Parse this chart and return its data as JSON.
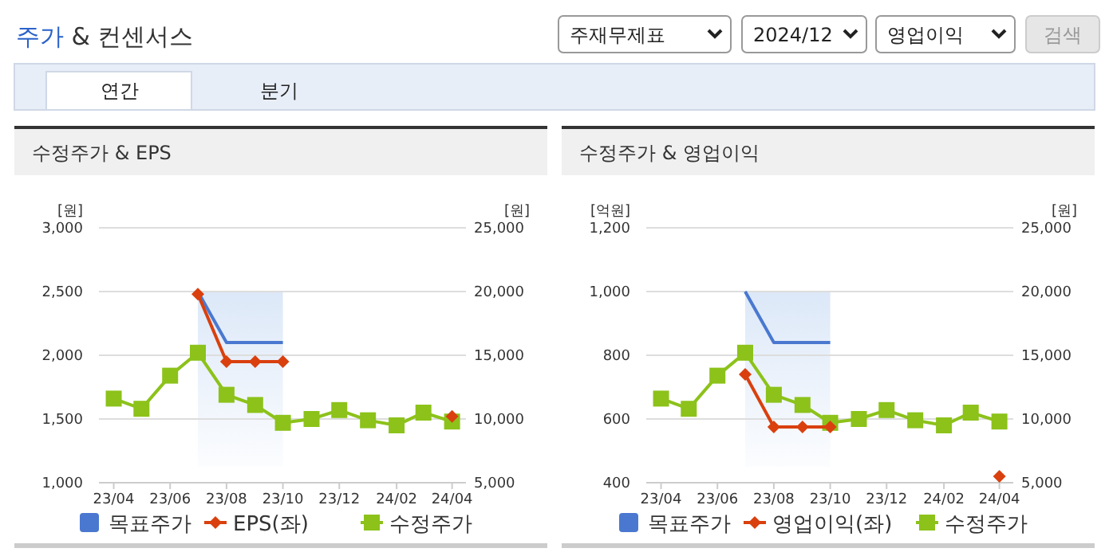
{
  "chart_data": [
    {
      "type": "other",
      "title": "주가 & 컨센서스",
      "annotations": [
        "주재무제표",
        "2024/12",
        "영업이익",
        "검색",
        "연간",
        "분기"
      ]
    },
    {
      "type": "line",
      "title": "수정주가 & EPS",
      "ylabel": "[원]",
      "y2label": "[원]",
      "x": [
        "2023-04",
        "2023-05",
        "2023-06",
        "2023-07",
        "2023-08",
        "2023-09",
        "2023-10",
        "2023-11",
        "2023-12",
        "2024-01",
        "2024-02",
        "2024-03",
        "2024-04"
      ],
      "xlim": [
        "2023-03-16",
        "2024-04-16"
      ],
      "xticks": [
        {
          "value": "2023-04",
          "label": "23/04"
        },
        {
          "value": "2023-06",
          "label": "23/06"
        },
        {
          "value": "2023-08",
          "label": "23/08"
        },
        {
          "value": "2023-10",
          "label": "23/10"
        },
        {
          "value": "2023-12",
          "label": "23/12"
        },
        {
          "value": "2024-02",
          "label": "24/02"
        },
        {
          "value": "2024-04",
          "label": "24/04"
        }
      ],
      "ylim": [
        1000,
        3000
      ],
      "yticks": [
        {
          "value": 1000,
          "label": "1,000"
        },
        {
          "value": 1500,
          "label": "1,500"
        },
        {
          "value": 2000,
          "label": "2,000"
        },
        {
          "value": 2500,
          "label": "2,500"
        },
        {
          "value": 3000,
          "label": "3,000"
        }
      ],
      "y2lim": [
        5000,
        25000
      ],
      "y2ticks": [
        {
          "value": 5000,
          "label": "5,000"
        },
        {
          "value": 10000,
          "label": "10,000"
        },
        {
          "value": 15000,
          "label": "15,000"
        },
        {
          "value": 20000,
          "label": "20,000"
        },
        {
          "value": 25000,
          "label": "25,000"
        }
      ],
      "grid": "y",
      "legend": "bottom",
      "bands": [
        {
          "axis": "x",
          "from": "2023-07",
          "to": "2023-10",
          "color": "#dce8f8"
        }
      ],
      "series": [
        {
          "name": "목표주가",
          "color": "#4a78d0",
          "axis": "y2",
          "marker": "none",
          "values": [
            null,
            null,
            null,
            20000,
            16000,
            16000,
            16000,
            null,
            null,
            null,
            null,
            null,
            null
          ]
        },
        {
          "name": "EPS(좌)",
          "color": "#d9400e",
          "marker": "diamond",
          "values": [
            null,
            null,
            null,
            2480,
            1950,
            1950,
            1950,
            null,
            null,
            null,
            null,
            null,
            1520
          ]
        },
        {
          "name": "수정주가",
          "color": "#8cc21a",
          "axis": "y2",
          "marker": "square",
          "values": [
            11600,
            10800,
            13400,
            15200,
            11900,
            11100,
            9700,
            10000,
            10700,
            9900,
            9500,
            10500,
            9800
          ]
        }
      ]
    },
    {
      "type": "line",
      "title": "수정주가 & 영업이익",
      "ylabel": "[억원]",
      "y2label": "[원]",
      "x": [
        "2023-04",
        "2023-05",
        "2023-06",
        "2023-07",
        "2023-08",
        "2023-09",
        "2023-10",
        "2023-11",
        "2023-12",
        "2024-01",
        "2024-02",
        "2024-03",
        "2024-04"
      ],
      "xlim": [
        "2023-03-16",
        "2024-04-16"
      ],
      "xticks": [
        {
          "value": "2023-04",
          "label": "23/04"
        },
        {
          "value": "2023-06",
          "label": "23/06"
        },
        {
          "value": "2023-08",
          "label": "23/08"
        },
        {
          "value": "2023-10",
          "label": "23/10"
        },
        {
          "value": "2023-12",
          "label": "23/12"
        },
        {
          "value": "2024-02",
          "label": "24/02"
        },
        {
          "value": "2024-04",
          "label": "24/04"
        }
      ],
      "ylim": [
        400,
        1200
      ],
      "yticks": [
        400,
        600,
        800,
        {
          "value": 1000,
          "label": "1,000"
        },
        {
          "value": 1200,
          "label": "1,200"
        }
      ],
      "y2lim": [
        5000,
        25000
      ],
      "y2ticks": [
        {
          "value": 5000,
          "label": "5,000"
        },
        {
          "value": 10000,
          "label": "10,000"
        },
        {
          "value": 15000,
          "label": "15,000"
        },
        {
          "value": 20000,
          "label": "20,000"
        },
        {
          "value": 25000,
          "label": "25,000"
        }
      ],
      "grid": "y",
      "legend": "bottom",
      "bands": [
        {
          "axis": "x",
          "from": "2023-07",
          "to": "2023-10",
          "color": "#dce8f8"
        }
      ],
      "series": [
        {
          "name": "목표주가",
          "color": "#4a78d0",
          "axis": "y2",
          "marker": "none",
          "values": [
            null,
            null,
            null,
            20000,
            16000,
            16000,
            16000,
            null,
            null,
            null,
            null,
            null,
            null
          ]
        },
        {
          "name": "영업이익(좌)",
          "color": "#d9400e",
          "marker": "diamond",
          "values": [
            null,
            null,
            null,
            740,
            575,
            575,
            575,
            null,
            null,
            null,
            null,
            null,
            420
          ]
        },
        {
          "name": "수정주가",
          "color": "#8cc21a",
          "axis": "y2",
          "marker": "square",
          "values": [
            11600,
            10800,
            13400,
            15200,
            11900,
            11100,
            9700,
            10000,
            10700,
            9900,
            9500,
            10500,
            9800
          ]
        }
      ]
    }
  ]
}
